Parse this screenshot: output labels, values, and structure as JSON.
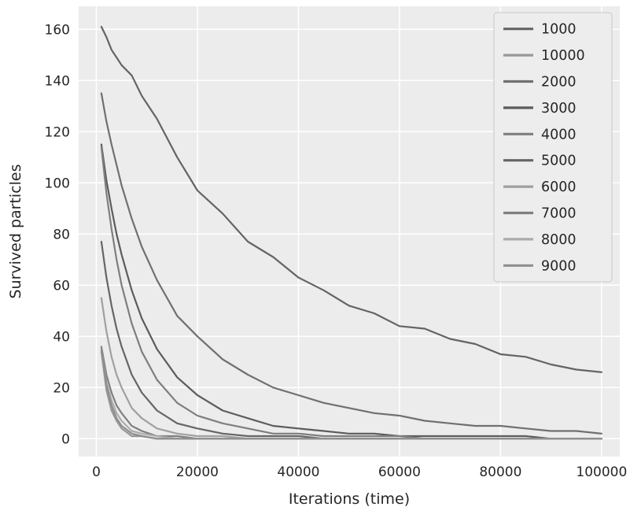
{
  "chart_data": {
    "type": "line",
    "title": "",
    "xlabel": "Iterations (time)",
    "ylabel": "Survived particles",
    "xlim": [
      -3500,
      103600
    ],
    "ylim": [
      -7,
      169
    ],
    "x_ticks": [
      0,
      20000,
      40000,
      60000,
      80000,
      100000
    ],
    "y_ticks": [
      0,
      20,
      40,
      60,
      80,
      100,
      120,
      140,
      160
    ],
    "grid": true,
    "grid_color": "#ffffff",
    "background": "#ececec",
    "legend_position": "upper right",
    "legend_order": [
      "1000",
      "10000",
      "2000",
      "3000",
      "4000",
      "5000",
      "6000",
      "7000",
      "8000",
      "9000"
    ],
    "x": [
      1000,
      2000,
      3000,
      4000,
      5000,
      7000,
      9000,
      12000,
      16000,
      20000,
      25000,
      30000,
      35000,
      40000,
      45000,
      50000,
      55000,
      60000,
      65000,
      70000,
      75000,
      80000,
      85000,
      90000,
      95000,
      100000
    ],
    "series": [
      {
        "name": "1000",
        "color": "#646464",
        "values": [
          161,
          157,
          152,
          149,
          146,
          142,
          134,
          125,
          110,
          97,
          88,
          77,
          71,
          63,
          58,
          52,
          49,
          44,
          43,
          39,
          37,
          33,
          32,
          29,
          27,
          26
        ]
      },
      {
        "name": "10000",
        "color": "#989898",
        "values": [
          34,
          19,
          11,
          7,
          4,
          1,
          1,
          0,
          0,
          0,
          0,
          0,
          0,
          0,
          0,
          0,
          0,
          0,
          0,
          0,
          0,
          0,
          0,
          0,
          0,
          0
        ]
      },
      {
        "name": "2000",
        "color": "#707070",
        "values": [
          135,
          124,
          115,
          107,
          99,
          86,
          75,
          62,
          48,
          40,
          31,
          25,
          20,
          17,
          14,
          12,
          10,
          9,
          7,
          6,
          5,
          5,
          4,
          3,
          3,
          2
        ]
      },
      {
        "name": "3000",
        "color": "#5c5c5c",
        "values": [
          115,
          101,
          90,
          80,
          72,
          58,
          47,
          35,
          24,
          17,
          11,
          8,
          5,
          4,
          3,
          2,
          2,
          1,
          1,
          1,
          1,
          1,
          1,
          0,
          0,
          0
        ]
      },
      {
        "name": "4000",
        "color": "#7e7e7e",
        "values": [
          114,
          96,
          82,
          70,
          60,
          45,
          34,
          23,
          14,
          9,
          6,
          4,
          2,
          2,
          1,
          1,
          1,
          1,
          0,
          0,
          0,
          0,
          0,
          0,
          0,
          0
        ]
      },
      {
        "name": "5000",
        "color": "#656565",
        "values": [
          77,
          63,
          52,
          43,
          36,
          25,
          18,
          11,
          6,
          4,
          2,
          1,
          1,
          1,
          0,
          0,
          0,
          0,
          0,
          0,
          0,
          0,
          0,
          0,
          0,
          0
        ]
      },
      {
        "name": "6000",
        "color": "#a0a0a0",
        "values": [
          55,
          42,
          32,
          25,
          20,
          12,
          8,
          4,
          2,
          1,
          1,
          0,
          0,
          0,
          0,
          0,
          0,
          0,
          0,
          0,
          0,
          0,
          0,
          0,
          0,
          0
        ]
      },
      {
        "name": "7000",
        "color": "#7f7f7f",
        "values": [
          36,
          25,
          18,
          13,
          10,
          5,
          3,
          1,
          1,
          0,
          0,
          0,
          0,
          0,
          0,
          0,
          0,
          0,
          0,
          0,
          0,
          0,
          0,
          0,
          0,
          0
        ]
      },
      {
        "name": "8000",
        "color": "#ababab",
        "values": [
          35,
          22,
          15,
          10,
          7,
          3,
          2,
          1,
          0,
          0,
          0,
          0,
          0,
          0,
          0,
          0,
          0,
          0,
          0,
          0,
          0,
          0,
          0,
          0,
          0,
          0
        ]
      },
      {
        "name": "9000",
        "color": "#8e8e8e",
        "values": [
          35,
          21,
          13,
          8,
          5,
          2,
          1,
          0,
          0,
          0,
          0,
          0,
          0,
          0,
          0,
          0,
          0,
          0,
          0,
          0,
          0,
          0,
          0,
          0,
          0,
          0
        ]
      }
    ]
  }
}
